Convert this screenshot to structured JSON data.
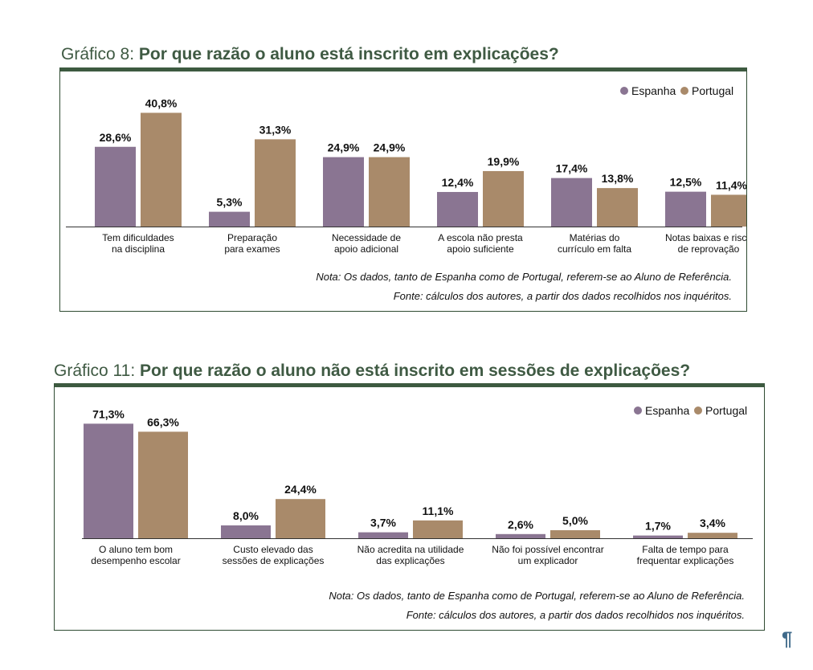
{
  "colors": {
    "spain": "#8a7592",
    "portugal": "#a98a6a",
    "frame": "#3d5a40",
    "title": "#3f5a43"
  },
  "chart_data": [
    {
      "type": "bar",
      "label": "Gráfico 8:",
      "title": "Por que razão o aluno está inscrito em explicações?",
      "categories": [
        [
          "Tem dificuldades",
          "na disciplina"
        ],
        [
          "Preparação",
          "para exames"
        ],
        [
          "Necessidade de",
          "apoio adicional"
        ],
        [
          "A escola não presta",
          "apoio suficiente"
        ],
        [
          "Matérias do",
          "currículo em falta"
        ],
        [
          "Notas baixas e risco",
          "de reprovação"
        ]
      ],
      "series": [
        {
          "name": "Espanha",
          "values": [
            28.6,
            5.3,
            24.9,
            12.4,
            17.4,
            12.5
          ],
          "labels": [
            "28,6%",
            "5,3%",
            "24,9%",
            "12,4%",
            "17,4%",
            "12,5%"
          ]
        },
        {
          "name": "Portugal",
          "values": [
            40.8,
            31.3,
            24.9,
            19.9,
            13.8,
            11.4
          ],
          "labels": [
            "40,8%",
            "31,3%",
            "24,9%",
            "19,9%",
            "13,8%",
            "11,4%"
          ]
        }
      ],
      "ylim": [
        0,
        50
      ],
      "legend": "top-right",
      "note": "Nota: Os dados, tanto de Espanha como de Portugal, referem-se ao Aluno de Referência.",
      "source": "Fonte: cálculos dos autores, a partir dos dados recolhidos nos inquéritos."
    },
    {
      "type": "bar",
      "label": "Gráfico 11:",
      "title": "Por que razão o aluno não está inscrito em sessões de explicações?",
      "categories": [
        [
          "O aluno tem bom",
          "desempenho escolar"
        ],
        [
          "Custo elevado das",
          "sessões de explicações"
        ],
        [
          "Não acredita na utilidade",
          "das explicações"
        ],
        [
          "Não foi possível encontrar",
          "um explicador"
        ],
        [
          "Falta de tempo para",
          "frequentar explicações"
        ]
      ],
      "series": [
        {
          "name": "Espanha",
          "values": [
            71.3,
            8.0,
            3.7,
            2.6,
            1.7
          ],
          "labels": [
            "71,3%",
            "8,0%",
            "3,7%",
            "2,6%",
            "1,7%"
          ]
        },
        {
          "name": "Portugal",
          "values": [
            66.3,
            24.4,
            11.1,
            5.0,
            3.4
          ],
          "labels": [
            "66,3%",
            "24,4%",
            "11,1%",
            "5,0%",
            "3,4%"
          ]
        }
      ],
      "ylim": [
        0,
        80
      ],
      "legend": "top-right",
      "note": "Nota: Os dados, tanto de Espanha como de Portugal, referem-se ao Aluno de Referência.",
      "source": "Fonte: cálculos dos autores, a partir dos dados recolhidos nos inquéritos."
    }
  ],
  "page_mark": "¶"
}
